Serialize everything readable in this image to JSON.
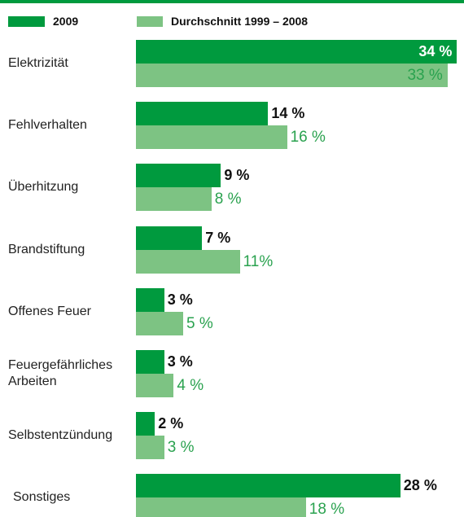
{
  "chart_data": {
    "type": "bar",
    "orientation": "horizontal",
    "categories": [
      "Elektrizität",
      "Fehlverhalten",
      "Überhitzung",
      "Brandstiftung",
      "Offenes Feuer",
      "Feuergefährliches Arbeiten",
      "Selbstentzündung",
      "Sonstiges"
    ],
    "series": [
      {
        "name": "2009",
        "color": "#009a3e",
        "values": [
          34,
          14,
          9,
          7,
          3,
          3,
          2,
          28
        ],
        "value_labels": [
          "34 %",
          "14 %",
          "9 %",
          "7 %",
          "3 %",
          "3 %",
          "2 %",
          "28 %"
        ]
      },
      {
        "name": "Durchschnitt 1999 – 2008",
        "color": "#7dc383",
        "values": [
          33,
          16,
          8,
          11,
          5,
          4,
          3,
          18
        ],
        "value_labels": [
          "33 %",
          "16 %",
          "8 %",
          "11%",
          "5 %",
          "4 %",
          "3 %",
          "18 %"
        ]
      }
    ]
  }
}
